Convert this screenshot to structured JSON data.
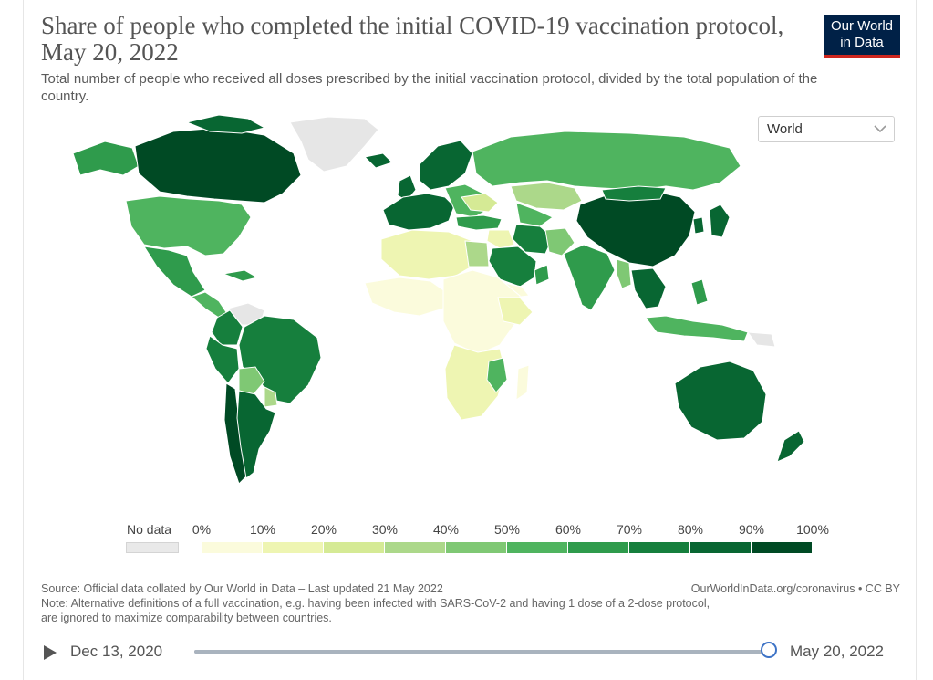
{
  "header": {
    "title": "Share of people who completed the initial COVID-19 vaccination protocol, May 20, 2022",
    "subtitle": "Total number of people who received all doses prescribed by the initial vaccination protocol, divided by the total population of the country."
  },
  "logo": {
    "line1": "Our World",
    "line2": "in Data"
  },
  "region_select": {
    "value": "World"
  },
  "legend": {
    "no_data_label": "No data",
    "no_data_color": "#e9e9e9",
    "ticks": [
      "0%",
      "10%",
      "20%",
      "30%",
      "40%",
      "50%",
      "60%",
      "70%",
      "80%",
      "90%",
      "100%"
    ],
    "bin_colors": [
      "#fbfbdc",
      "#eef5b2",
      "#d5ea95",
      "#acd88a",
      "#7fc874",
      "#4fb45f",
      "#2f9b4c",
      "#167f3d",
      "#086632",
      "#004a24"
    ]
  },
  "map": {
    "regions": [
      {
        "name": "Canada",
        "value": 82
      },
      {
        "name": "United States",
        "value": 67
      },
      {
        "name": "Greenland",
        "value": null
      },
      {
        "name": "Brazil",
        "value": 78
      },
      {
        "name": "Argentina",
        "value": 82
      },
      {
        "name": "Chile",
        "value": 91
      },
      {
        "name": "Peru",
        "value": 80
      },
      {
        "name": "Bolivia",
        "value": 50
      },
      {
        "name": "Russia",
        "value": 51
      },
      {
        "name": "China",
        "value": 89
      },
      {
        "name": "India",
        "value": 64
      },
      {
        "name": "Australia",
        "value": 84
      },
      {
        "name": "Saudi Arabia",
        "value": 71
      },
      {
        "name": "Africa (most countries)",
        "value": 15
      }
    ]
  },
  "footer": {
    "source": "Source: Official data collated by Our World in Data – Last updated 21 May 2022",
    "credit": "OurWorldInData.org/coronavirus • CC BY",
    "note_line1": "Note: Alternative definitions of a full vaccination, e.g. having been infected with SARS-CoV-2 and having 1 dose of a 2-dose protocol,",
    "note_line2": "are ignored to maximize comparability between countries."
  },
  "timeline": {
    "start": "Dec 13, 2020",
    "end": "May 20, 2022",
    "progress": 1.0
  }
}
